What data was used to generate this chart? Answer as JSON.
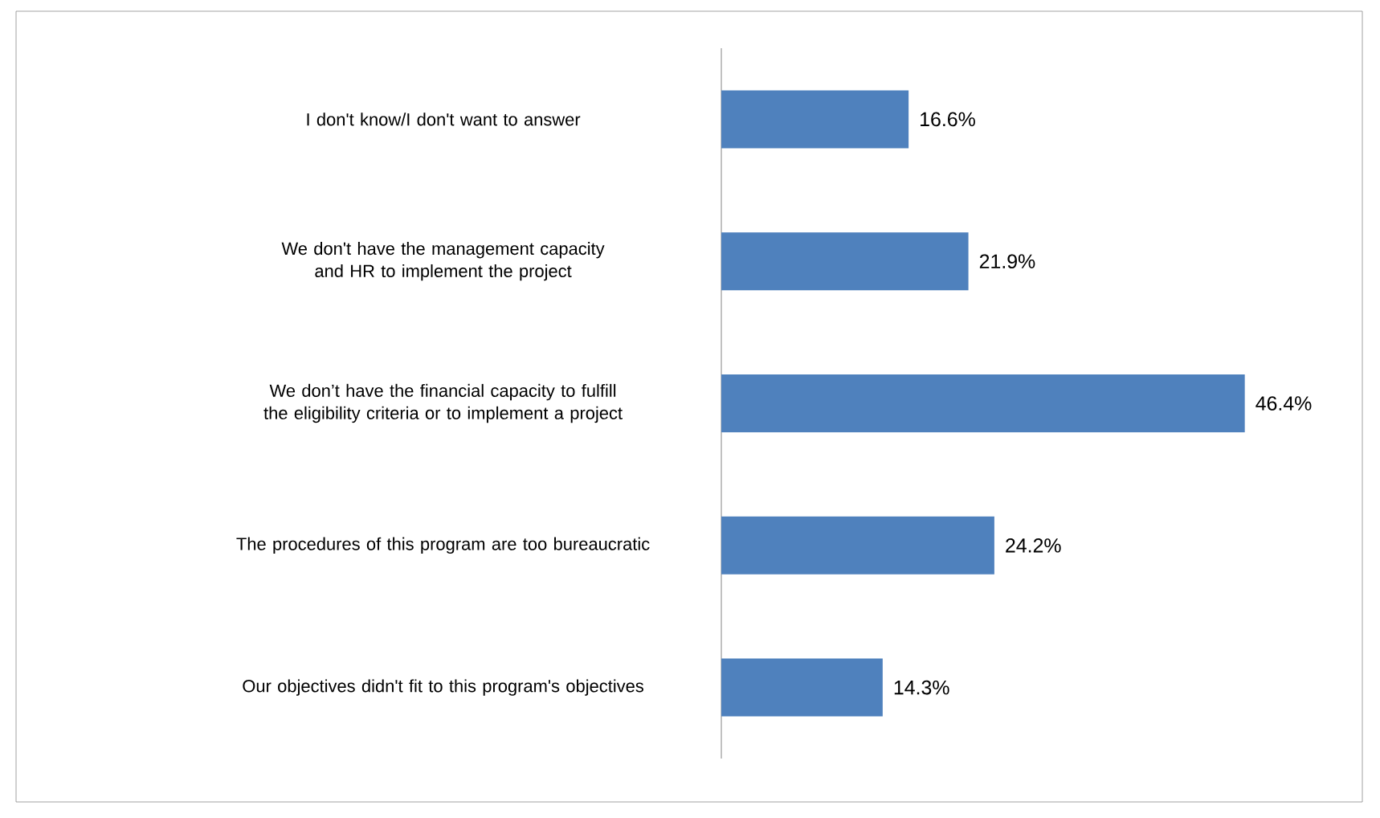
{
  "chart_data": {
    "type": "bar",
    "orientation": "horizontal",
    "categories": [
      "I don't know/I don't want to answer",
      "We don't have the management capacity and HR to implement the project",
      "We don’t have the financial capacity to fulfill the eligibility criteria or to implement a project",
      "The procedures of this program are too bureaucratic",
      "Our objectives didn't fit to this program's objectives"
    ],
    "values": [
      16.6,
      21.9,
      46.4,
      24.2,
      14.3
    ],
    "value_labels": [
      "16.6%",
      "21.9%",
      "46.4%",
      "24.2%",
      "14.3%"
    ],
    "color": "#4f81bd"
  }
}
